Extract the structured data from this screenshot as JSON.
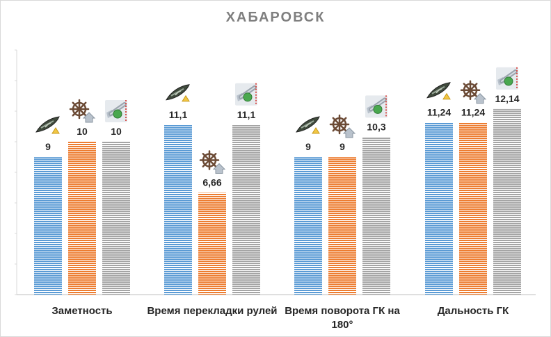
{
  "chart_data": {
    "type": "bar",
    "title": "ХАБАРОВСК",
    "categories": [
      "Заметность",
      "Время перекладки рулей",
      "Время поворота ГК на 180°",
      "Дальность ГК"
    ],
    "series": [
      {
        "values": [
          9,
          11.1,
          9,
          11.24
        ],
        "labels": [
          "9",
          "11,1",
          "9",
          "11,24"
        ],
        "color": "#5b9bd5",
        "icon": "ship-camouflage-icon"
      },
      {
        "values": [
          10,
          6.66,
          9,
          11.24
        ],
        "labels": [
          "10",
          "6,66",
          "9",
          "11,24"
        ],
        "color": "#ed7d31",
        "icon": "ship-wheel-upgrade-icon"
      },
      {
        "values": [
          10,
          11.1,
          10.3,
          12.14
        ],
        "labels": [
          "10",
          "11,1",
          "10,3",
          "12,14"
        ],
        "color": "#a5a5a5",
        "icon": "turret-upgrade-icon"
      }
    ],
    "ylim": [
      0,
      16
    ],
    "grid": false,
    "legend": "none"
  }
}
